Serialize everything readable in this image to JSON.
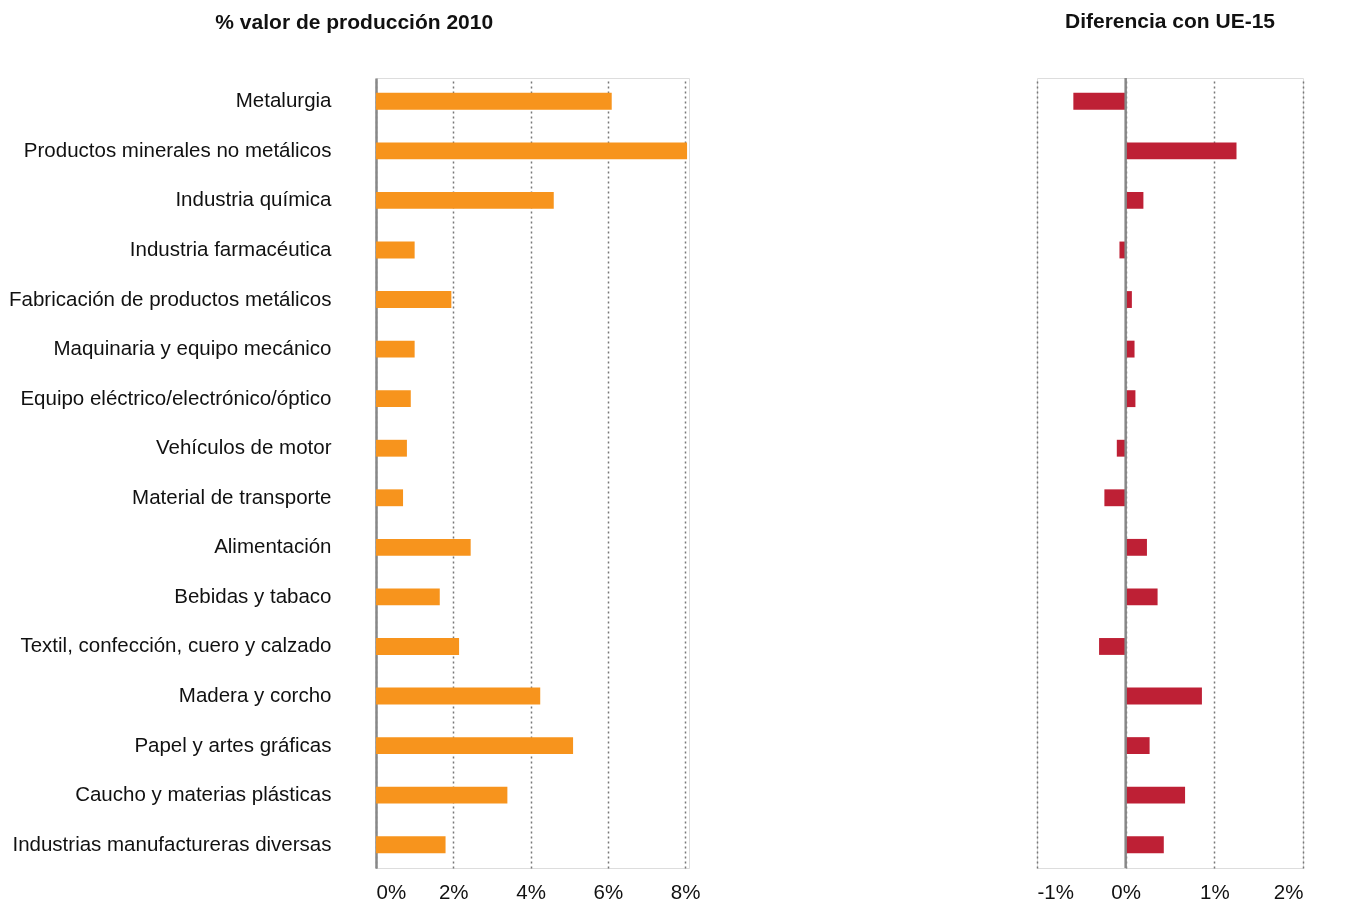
{
  "chart_data": [
    {
      "type": "bar",
      "orientation": "horizontal",
      "title": "% valor de producción 2010",
      "categories": [
        "Metalurgia",
        "Productos minerales no metálicos",
        "Industria química",
        "Industria farmacéutica",
        "Fabricación de productos metálicos",
        "Maquinaria y equipo mecánico",
        "Equipo eléctrico/electrónico/óptico",
        "Vehículos de motor",
        "Material de transporte",
        "Alimentación",
        "Bebidas y tabaco",
        "Textil, confección, cuero y calzado",
        "Madera y corcho",
        "Papel y artes gráficas",
        "Caucho y materias plásticas",
        "Industrias manufactureras diversas"
      ],
      "series": [
        {
          "color": "#f7941d",
          "values": [
            6.1,
            8.05,
            4.6,
            1.0,
            1.95,
            1.0,
            0.9,
            0.8,
            0.7,
            2.45,
            1.65,
            2.15,
            4.25,
            5.1,
            3.4,
            1.8
          ]
        }
      ],
      "xlim": [
        0,
        8.1
      ],
      "xticks": [
        {
          "value": 0,
          "label": "0%"
        },
        {
          "value": 2,
          "label": "2%"
        },
        {
          "value": 4,
          "label": "4%"
        },
        {
          "value": 6,
          "label": "6%"
        },
        {
          "value": 8,
          "label": "8%"
        }
      ],
      "grid": "x"
    },
    {
      "type": "bar",
      "orientation": "horizontal",
      "title": "Diferencia con UE-15",
      "categories": [
        null,
        null,
        null,
        null,
        null,
        null,
        null,
        null,
        null,
        null,
        null,
        null,
        null,
        null,
        null,
        null
      ],
      "series": [
        {
          "color": "#be2035",
          "values": [
            -0.59,
            1.25,
            0.2,
            -0.07,
            0.07,
            0.1,
            0.11,
            -0.1,
            -0.24,
            0.24,
            0.36,
            -0.3,
            0.86,
            0.27,
            0.67,
            0.43
          ]
        }
      ],
      "xlim": [
        -1,
        2
      ],
      "xticks": [
        {
          "value": -1,
          "label": "-1%"
        },
        {
          "value": 0,
          "label": "0%"
        },
        {
          "value": 1,
          "label": "1%"
        },
        {
          "value": 2,
          "label": "2%"
        }
      ],
      "ref_lines": [
        {
          "axis": "x",
          "value": 0,
          "color": "#888888"
        }
      ],
      "grid": "x",
      "tick_labels": "x"
    }
  ]
}
